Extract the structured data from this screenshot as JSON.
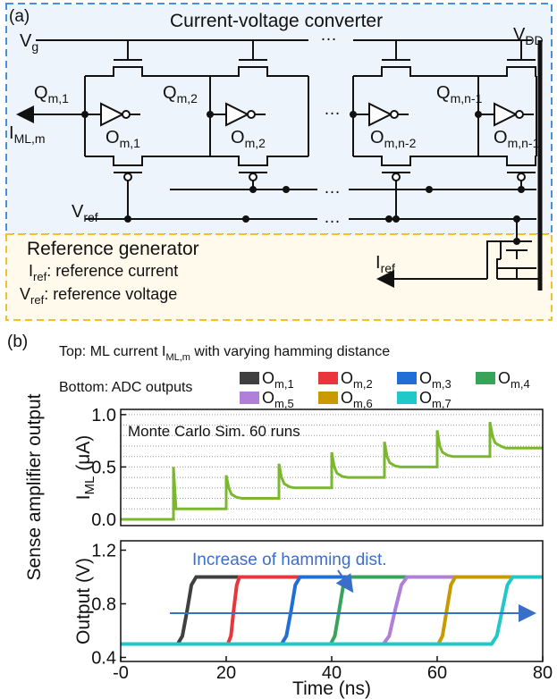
{
  "figure": {
    "panel_a": "(a)",
    "converter_title": "Current-voltage converter",
    "ellipsis": "…",
    "vg": {
      "text": "V",
      "sub": "g"
    },
    "vdd": {
      "text": "V",
      "sub": "DD"
    },
    "q": [
      {
        "text": "Q",
        "sub": "m,1"
      },
      {
        "text": "Q",
        "sub": "m,2"
      },
      {
        "text": "Q",
        "sub": "m,n-1"
      }
    ],
    "o": [
      {
        "text": "O",
        "sub": "m,1"
      },
      {
        "text": "O",
        "sub": "m,2"
      },
      {
        "text": "O",
        "sub": "m,n-2"
      },
      {
        "text": "O",
        "sub": "m,n-1"
      }
    ],
    "iml": {
      "text": "I",
      "sub": "ML,m"
    },
    "vref": {
      "text": "V",
      "sub": "ref"
    },
    "generator_title": "Reference generator",
    "iref_desc": {
      "text": "I",
      "sub": "ref",
      "rest": ": reference current"
    },
    "vref_desc": {
      "text": "V",
      "sub": "ref",
      "rest": ": reference voltage"
    },
    "iref": {
      "text": "I",
      "sub": "ref"
    },
    "panel_b": "(b)",
    "subtitle_top": {
      "text": "Top: ML current I",
      "sub": "ML,m",
      "rest": " with varying hamming distance"
    },
    "subtitle_bottom": "Bottom: ADC outputs",
    "side_label": "Sense amplifier output"
  },
  "chart_data": [
    {
      "type": "line",
      "ylabel": {
        "text": "I",
        "sub": "ML",
        "rest": " (μA)"
      },
      "annotation": "Monte Carlo Sim. 60 runs",
      "x": [
        0,
        10,
        10,
        10.5,
        11,
        12,
        20,
        20,
        20.5,
        21,
        22,
        23,
        30,
        30,
        30.5,
        31,
        32,
        33,
        40,
        40,
        40.5,
        41,
        42,
        43,
        50,
        50,
        50.5,
        51,
        52,
        53,
        60,
        60,
        60.5,
        61,
        62,
        63,
        70,
        70,
        70.5,
        71,
        72,
        73,
        80
      ],
      "values": [
        0,
        0,
        0.5,
        0.1,
        0.1,
        0.1,
        0.1,
        0.42,
        0.3,
        0.24,
        0.21,
        0.2,
        0.2,
        0.53,
        0.4,
        0.34,
        0.31,
        0.3,
        0.3,
        0.64,
        0.5,
        0.44,
        0.41,
        0.4,
        0.4,
        0.74,
        0.6,
        0.54,
        0.51,
        0.5,
        0.5,
        0.85,
        0.7,
        0.64,
        0.61,
        0.6,
        0.6,
        0.93,
        0.79,
        0.73,
        0.7,
        0.68,
        0.68
      ],
      "color": "#7cb82f",
      "xlim": [
        0,
        80
      ],
      "ylim": [
        -0.06,
        1.05
      ],
      "yticks": [
        {
          "value": 0,
          "label": "0.0"
        },
        0.5,
        {
          "value": 1,
          "label": "1.0"
        }
      ],
      "minor_yticks": [
        0,
        0.1,
        0.2,
        0.3,
        0.4,
        0.5,
        0.6,
        0.7,
        0.8,
        0.9,
        1
      ],
      "grid": true
    },
    {
      "type": "line",
      "ylabel": "Output (V)",
      "xlabel": "Time (ns)",
      "annotation": "Increase of hamming dist.",
      "series": [
        {
          "name": {
            "text": "O",
            "sub": "m,1"
          },
          "color": "#404040",
          "x": [
            0,
            10.8,
            11.7,
            12.6,
            13.4,
            14.3,
            80
          ],
          "values": [
            0.5,
            0.5,
            0.56,
            0.75,
            0.94,
            1,
            1
          ]
        },
        {
          "name": {
            "text": "O",
            "sub": "m,2"
          },
          "color": "#e8363c",
          "x": [
            0,
            20.3,
            20.9,
            21.4,
            22,
            22.5,
            80
          ],
          "values": [
            0.5,
            0.5,
            0.56,
            0.75,
            0.94,
            1,
            1
          ]
        },
        {
          "name": {
            "text": "O",
            "sub": "m,3"
          },
          "color": "#1f6fd6",
          "x": [
            0,
            30.5,
            31.4,
            32.3,
            33.1,
            34,
            80
          ],
          "values": [
            0.5,
            0.5,
            0.56,
            0.75,
            0.94,
            1,
            1
          ]
        },
        {
          "name": {
            "text": "O",
            "sub": "m,4"
          },
          "color": "#3aa35a",
          "x": [
            0,
            39.8,
            40.6,
            41.4,
            42.2,
            43,
            80
          ],
          "values": [
            0.5,
            0.5,
            0.56,
            0.75,
            0.94,
            1,
            1
          ]
        },
        {
          "name": {
            "text": "O",
            "sub": "m,5"
          },
          "color": "#b07fd8",
          "x": [
            0,
            49.8,
            50.9,
            52,
            53.2,
            54.3,
            80
          ],
          "values": [
            0.5,
            0.5,
            0.56,
            0.75,
            0.94,
            1,
            1
          ]
        },
        {
          "name": {
            "text": "O",
            "sub": "m,6"
          },
          "color": "#c89a00",
          "x": [
            0,
            60.2,
            61,
            61.8,
            62.6,
            63.4,
            80
          ],
          "values": [
            0.5,
            0.5,
            0.56,
            0.75,
            0.94,
            1,
            1
          ]
        },
        {
          "name": {
            "text": "O",
            "sub": "m,7"
          },
          "color": "#20c8c8",
          "x": [
            0,
            70.3,
            71.3,
            72.3,
            73.3,
            74.3,
            80
          ],
          "values": [
            0.5,
            0.5,
            0.56,
            0.75,
            0.94,
            1,
            1
          ]
        }
      ],
      "xlim": [
        0,
        80
      ],
      "xticks": [
        {
          "value": 0,
          "label": "-0"
        },
        20,
        40,
        60,
        80
      ],
      "ylim": [
        0.37,
        1.27
      ],
      "yticks": [
        0.4,
        0.8,
        1.2
      ],
      "legend": "top"
    }
  ]
}
